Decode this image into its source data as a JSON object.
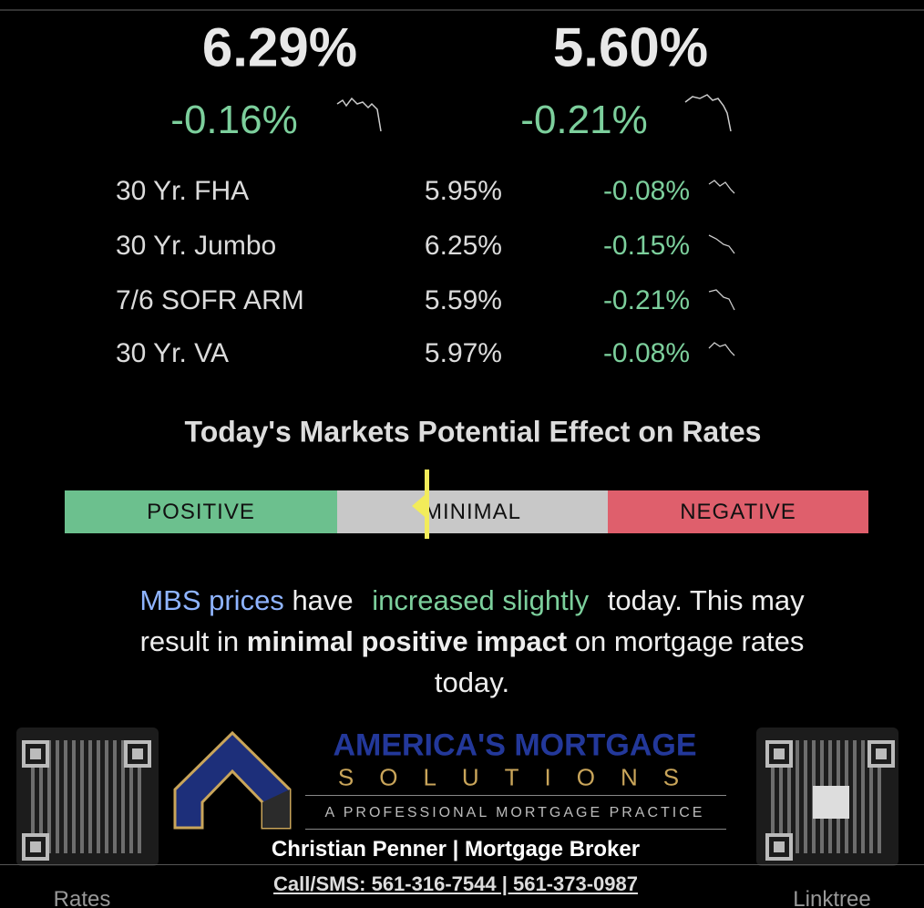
{
  "headline_rates": [
    {
      "rate": "6.29%",
      "change": "-0.16%"
    },
    {
      "rate": "5.60%",
      "change": "-0.21%"
    }
  ],
  "rate_table": {
    "rows": [
      [
        "30 Yr. FHA",
        "5.95%",
        "-0.08%"
      ],
      [
        "30 Yr. Jumbo",
        "6.25%",
        "-0.15%"
      ],
      [
        "7/6 SOFR ARM",
        "5.59%",
        "-0.21%"
      ],
      [
        "30 Yr. VA",
        "5.97%",
        "-0.08%"
      ]
    ]
  },
  "effect": {
    "title": "Today's Markets Potential Effect on Rates",
    "scale": [
      "POSITIVE",
      "MINIMAL",
      "NEGATIVE"
    ]
  },
  "message": {
    "segments": [
      "MBS prices",
      "have",
      "increased slightly",
      "today. This may result in",
      "minimal positive impact",
      "on mortgage rates today."
    ]
  },
  "footer": {
    "brand": "AMERICA'S MORTGAGE",
    "brand_sub": "SOLUTIONS",
    "tagline": "A PROFESSIONAL MORTGAGE PRACTICE",
    "name": "Christian Penner | Mortgage Broker",
    "phone": "Call/SMS: 561-316-7544 | 561-373-0987",
    "qr_labels": [
      "Rates",
      "Linktree"
    ]
  }
}
